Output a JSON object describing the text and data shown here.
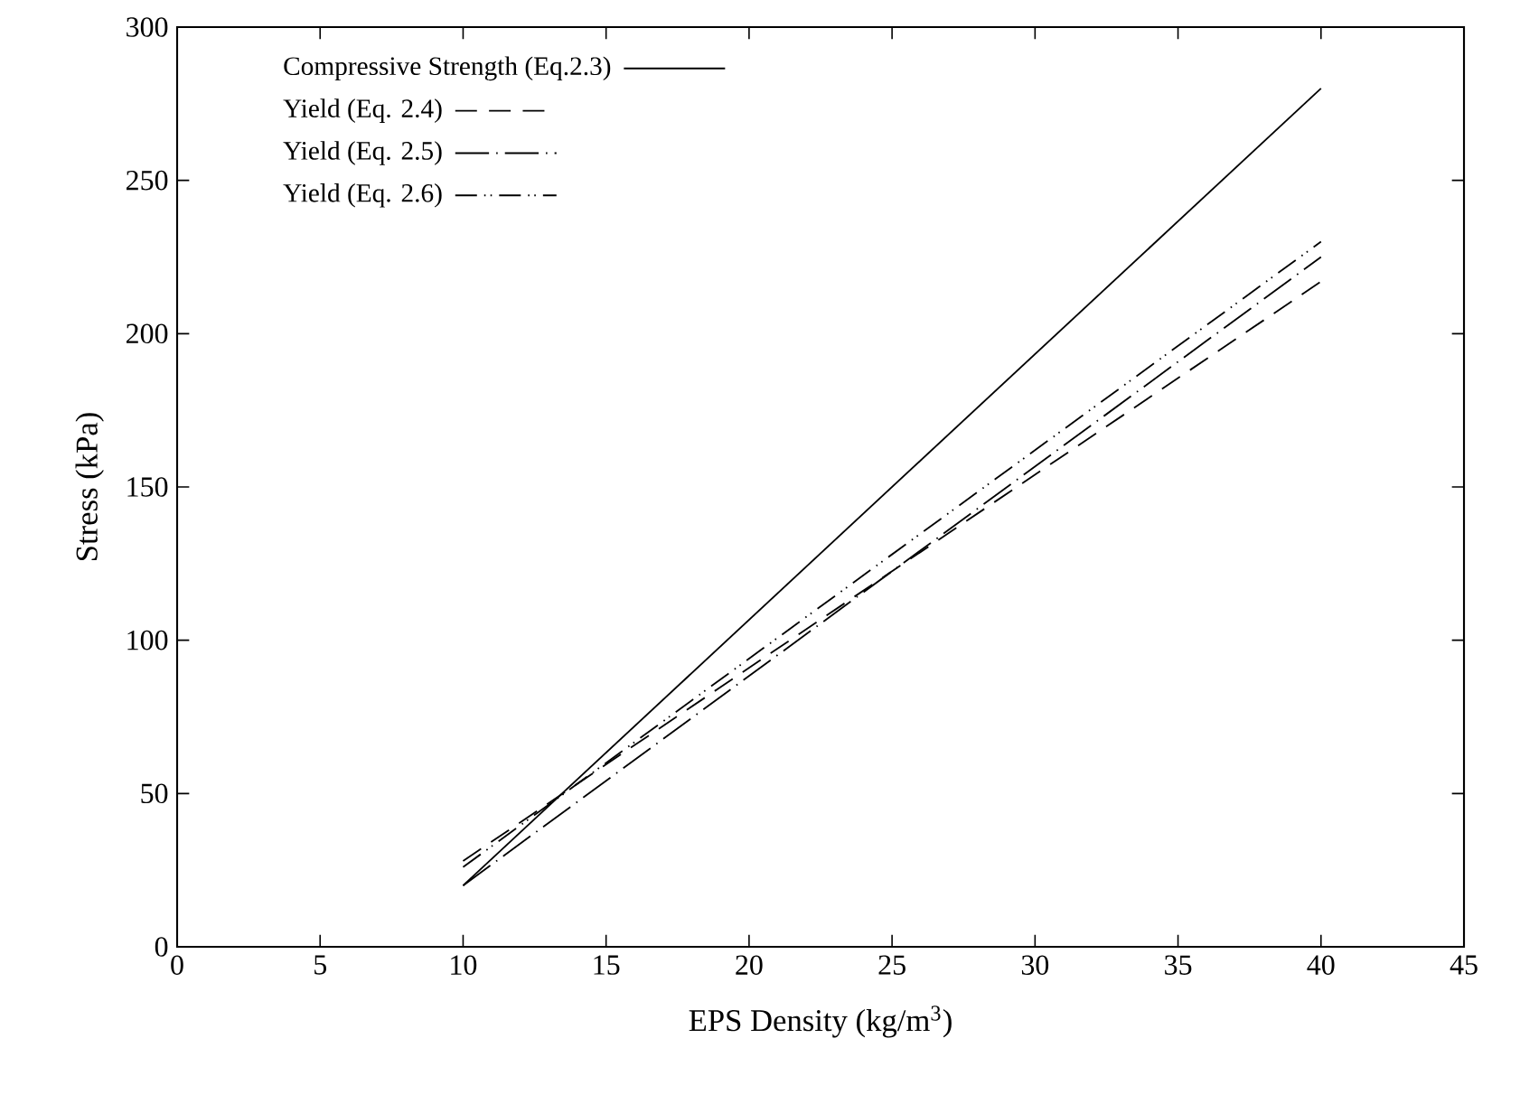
{
  "chart_data": {
    "type": "line",
    "xlabel": "EPS Density (kg/m$^{3}$)",
    "ylabel": "Stress (kPa)",
    "xlim": [
      0,
      45
    ],
    "ylim": [
      0,
      300
    ],
    "xticks": [
      0,
      5,
      10,
      15,
      20,
      25,
      30,
      35,
      40,
      45
    ],
    "yticks": [
      0,
      50,
      100,
      150,
      200,
      250,
      300
    ],
    "legend": "top left",
    "marker": "none",
    "x": [
      10,
      40
    ],
    "series": [
      {
        "name": "Compressive Strength (Eq.2.3)",
        "color": "#000000",
        "line_style": "solid",
        "values": [
          20,
          280
        ]
      },
      {
        "name": "Yield (Eq. 2.4)",
        "color": "#000000",
        "line_style": "dashed",
        "values": [
          28,
          217
        ]
      },
      {
        "name": "Yield (Eq. 2.5)",
        "color": "#000000",
        "line_style": "dashdot",
        "values": [
          20,
          225
        ]
      },
      {
        "name": "Yield (Eq. 2.6)",
        "color": "#000000",
        "line_style": "dashdotdot",
        "values": [
          26,
          230
        ]
      }
    ]
  }
}
